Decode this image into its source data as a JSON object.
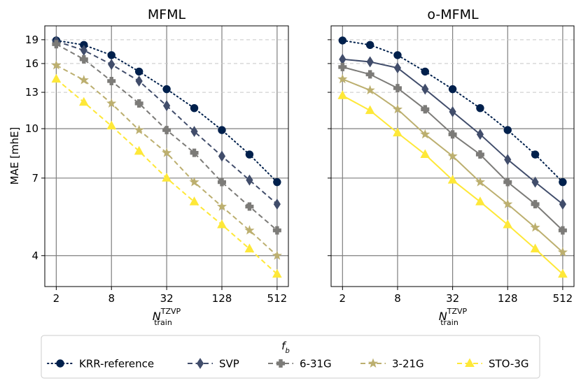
{
  "chart_data": [
    {
      "type": "line",
      "title": "MFML",
      "xlabel": "N",
      "xlabel_sub": "train",
      "xlabel_sup": "TZVP",
      "ylabel": "MAE [mhE]",
      "xscale": "log2",
      "yscale": "log",
      "xlim": [
        1.5,
        680
      ],
      "ylim": [
        3.2,
        21
      ],
      "xticks": [
        {
          "v": 2,
          "label": "2"
        },
        {
          "v": 8,
          "label": "8"
        },
        {
          "v": 32,
          "label": "32"
        },
        {
          "v": 128,
          "label": "128"
        },
        {
          "v": 512,
          "label": "512"
        }
      ],
      "yticks": [
        {
          "v": 4,
          "label": "4"
        },
        {
          "v": 7,
          "label": "7"
        },
        {
          "v": 10,
          "label": "10"
        },
        {
          "v": 13,
          "label": "13"
        },
        {
          "v": 16,
          "label": "16"
        },
        {
          "v": 19,
          "label": "19"
        }
      ],
      "x": [
        2,
        4,
        8,
        16,
        32,
        64,
        128,
        256,
        512
      ],
      "series": [
        {
          "name": "KRR-reference",
          "values": [
            18.9,
            18.3,
            17.0,
            15.1,
            13.3,
            11.6,
            9.9,
            8.3,
            6.8
          ]
        },
        {
          "name": "SVP",
          "values": [
            18.8,
            17.6,
            15.9,
            14.1,
            11.8,
            9.8,
            8.2,
            6.9,
            5.8
          ]
        },
        {
          "name": "6-31G",
          "values": [
            18.4,
            16.5,
            14.1,
            12.0,
            9.9,
            8.4,
            6.8,
            5.7,
            4.8
          ]
        },
        {
          "name": "3-21G",
          "values": [
            15.8,
            14.2,
            12.0,
            9.9,
            8.4,
            6.8,
            5.7,
            4.8,
            4.0
          ]
        },
        {
          "name": "STO-3G",
          "values": [
            14.3,
            12.1,
            10.2,
            8.5,
            7.0,
            5.9,
            5.0,
            4.2,
            3.5
          ]
        }
      ]
    },
    {
      "type": "line",
      "title": "o-MFML",
      "xlabel": "N",
      "xlabel_sub": "train",
      "xlabel_sup": "TZVP",
      "ylabel": "",
      "xscale": "log2",
      "yscale": "log",
      "xlim": [
        1.5,
        680
      ],
      "ylim": [
        3.2,
        21
      ],
      "xticks": [
        {
          "v": 2,
          "label": "2"
        },
        {
          "v": 8,
          "label": "8"
        },
        {
          "v": 32,
          "label": "32"
        },
        {
          "v": 128,
          "label": "128"
        },
        {
          "v": 512,
          "label": "512"
        }
      ],
      "yticks": [],
      "x": [
        2,
        4,
        8,
        16,
        32,
        64,
        128,
        256,
        512
      ],
      "series": [
        {
          "name": "KRR-reference",
          "values": [
            18.9,
            18.3,
            17.0,
            15.1,
            13.3,
            11.6,
            9.9,
            8.3,
            6.8
          ]
        },
        {
          "name": "SVP",
          "values": [
            16.5,
            16.2,
            15.5,
            13.3,
            11.3,
            9.6,
            8.0,
            6.8,
            5.8
          ]
        },
        {
          "name": "6-31G",
          "values": [
            15.6,
            14.8,
            13.4,
            11.5,
            9.6,
            8.3,
            6.8,
            5.8,
            4.8
          ]
        },
        {
          "name": "3-21G",
          "values": [
            14.3,
            13.2,
            11.5,
            9.6,
            8.2,
            6.8,
            5.8,
            4.9,
            4.1
          ]
        },
        {
          "name": "STO-3G",
          "values": [
            12.7,
            11.4,
            9.7,
            8.3,
            6.9,
            5.9,
            5.0,
            4.2,
            3.5
          ]
        }
      ]
    }
  ],
  "legend": {
    "title": "f",
    "title_sub": "b",
    "placement": "bottom-center",
    "entries": [
      {
        "label": "KRR-reference",
        "color": "#00204c",
        "dash": "dotted",
        "marker": "circle"
      },
      {
        "label": "SVP",
        "color": "#414d6b",
        "dash": "dashed",
        "marker": "diamond"
      },
      {
        "label": "6-31G",
        "color": "#7c7b78",
        "dash": "dashed",
        "marker": "plus"
      },
      {
        "label": "3-21G",
        "color": "#bcaf6f",
        "dash": "dashed",
        "marker": "star"
      },
      {
        "label": "STO-3G",
        "color": "#fee838",
        "dash": "dashed",
        "marker": "triangle"
      }
    ]
  },
  "styles": {
    "MFML": {
      "solid_series": []
    },
    "o-MFML": {
      "solid_series": [
        "SVP",
        "6-31G",
        "3-21G",
        "STO-3G"
      ]
    }
  }
}
